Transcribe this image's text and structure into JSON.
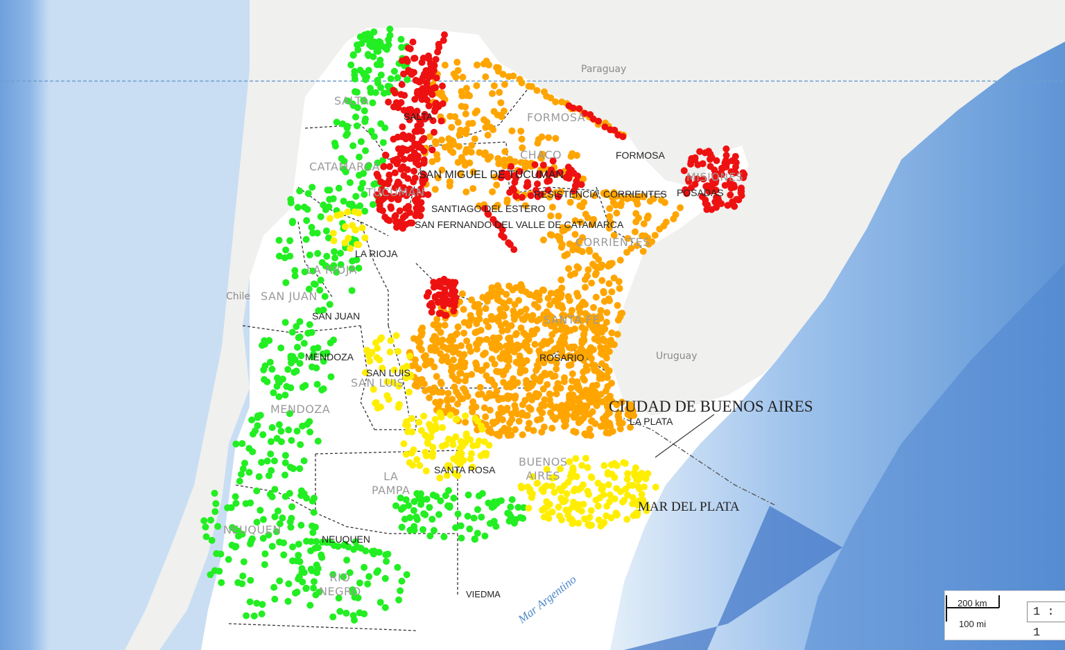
{
  "map": {
    "countries": [
      {
        "id": "paraguay",
        "label": "Paraguay"
      },
      {
        "id": "uruguay",
        "label": "Uruguay"
      },
      {
        "id": "chile",
        "label": "Chile"
      }
    ],
    "provinces": [
      {
        "id": "salta",
        "label": "SALTA"
      },
      {
        "id": "formosa",
        "label": "FORMOSA"
      },
      {
        "id": "chaco",
        "label": "CHACO"
      },
      {
        "id": "catamarca",
        "label": "CATAMARCA"
      },
      {
        "id": "tucuman",
        "label": "TUCUMAN"
      },
      {
        "id": "misiones",
        "label": "MISIONES"
      },
      {
        "id": "corrientes",
        "label": "CORRIENTES"
      },
      {
        "id": "la-rioja",
        "label": "LA RIOJA"
      },
      {
        "id": "san-juan",
        "label": "SAN JUAN"
      },
      {
        "id": "santa-fe",
        "label": "SANTA FE"
      },
      {
        "id": "san-luis",
        "label": "SAN LUIS"
      },
      {
        "id": "mendoza",
        "label": "MENDOZA"
      },
      {
        "id": "buenos-aires",
        "label": "BUENOS\nAIRES"
      },
      {
        "id": "la-pampa",
        "label": "LA\nPAMPA"
      },
      {
        "id": "neuquen",
        "label": "NEUQUEN"
      },
      {
        "id": "rio-negro",
        "label": "RIO\nNEGRO"
      }
    ],
    "cities": [
      {
        "id": "salta-city",
        "label": "SALTA"
      },
      {
        "id": "formosa-city",
        "label": "FORMOSA"
      },
      {
        "id": "tucuman-city",
        "label": "SAN MIGUEL DE TUCUMAN"
      },
      {
        "id": "resistencia",
        "label": "RESISTENCIA"
      },
      {
        "id": "corrientes-city",
        "label": "CORRIENTES"
      },
      {
        "id": "posadas",
        "label": "POSADAS"
      },
      {
        "id": "santiago",
        "label": "SANTIAGO DEL ESTERO"
      },
      {
        "id": "catamarca-city",
        "label": "SAN FERNANDO DEL VALLE DE CATAMARCA"
      },
      {
        "id": "la-rioja-city",
        "label": "LA RIOJA"
      },
      {
        "id": "san-juan-city",
        "label": "SAN JUAN"
      },
      {
        "id": "mendoza-city",
        "label": "MENDOZA"
      },
      {
        "id": "san-luis-city",
        "label": "SAN LUIS"
      },
      {
        "id": "rosario",
        "label": "ROSARIO"
      },
      {
        "id": "la-plata",
        "label": "LA PLATA"
      },
      {
        "id": "santa-rosa",
        "label": "SANTA ROSA"
      },
      {
        "id": "neuquen-city",
        "label": "NEUQUEN"
      },
      {
        "id": "viedma",
        "label": "VIEDMA"
      }
    ],
    "big_city": "CIUDAD DE BUENOS AIRES",
    "big_city_2": "MAR DEL PLATA",
    "sea_label": "Mar Argentino"
  },
  "scale_bar": {
    "km": "200 km",
    "mi": "100 mi",
    "ratio": "1 : 1"
  },
  "colors": {
    "ocean": "#a9c9ec",
    "land_foreign": "#f0f0ef",
    "land_argentina": "#ffffff",
    "red": "#ee1111",
    "orange": "#ffa500",
    "yellow": "#ffee00",
    "green": "#22ee22"
  }
}
